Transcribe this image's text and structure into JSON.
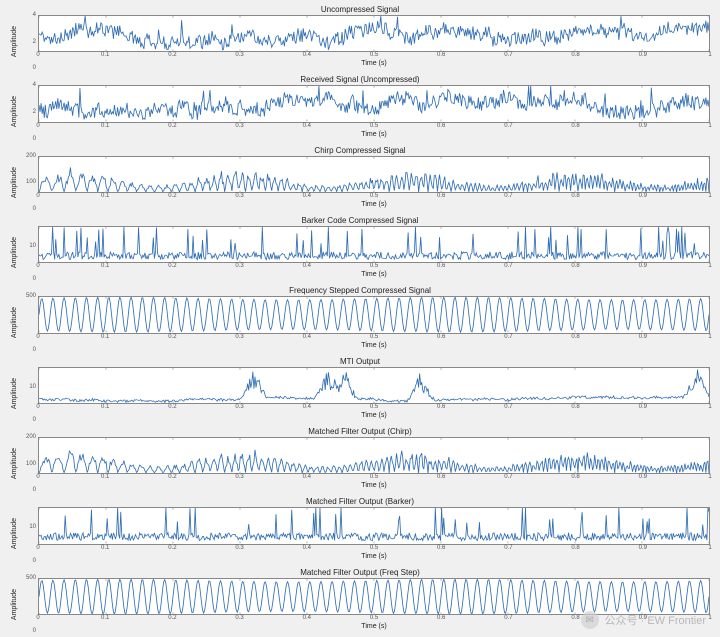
{
  "background_color": "#f0f0f0",
  "plot_background": "#ffffff",
  "axis_border_color": "#888888",
  "line_color": "#2f6db4",
  "text_color": "#222222",
  "tick_color": "#555555",
  "title_fontsize": 8,
  "label_fontsize": 7,
  "tick_fontsize": 6,
  "line_width": 0.8,
  "xlim": [
    0,
    1
  ],
  "xticks": [
    0,
    0.1,
    0.2,
    0.3,
    0.4,
    0.5,
    0.6,
    0.7,
    0.8,
    0.9,
    1
  ],
  "xlabel": "Time (s)",
  "ylabel": "Amplitude",
  "n_samples": 640,
  "panels": [
    {
      "title": "Uncompressed Signal",
      "ylim": [
        0,
        4
      ],
      "yticks": [
        0,
        2,
        4
      ],
      "waveform": "noise",
      "seed": 11,
      "base": 1.8,
      "spread": 1.6
    },
    {
      "title": "Received Signal (Uncompressed)",
      "ylim": [
        0,
        4
      ],
      "yticks": [
        0,
        2,
        4
      ],
      "waveform": "noise",
      "seed": 23,
      "base": 1.8,
      "spread": 1.6
    },
    {
      "title": "Chirp Compressed Signal",
      "ylim": [
        0,
        200
      ],
      "yticks": [
        0,
        100,
        200
      ],
      "waveform": "chirp",
      "seed": 35,
      "osc": 50,
      "mod": 0.7,
      "env_amp": 95,
      "env_base": 40
    },
    {
      "title": "Barker Code Compressed Signal",
      "ylim": [
        0,
        16
      ],
      "yticks": [
        0,
        10
      ],
      "waveform": "spiky",
      "seed": 47,
      "base": 3.0,
      "spike_h": 12,
      "spike_prob": 0.06
    },
    {
      "title": "Frequency Stepped Compressed Signal",
      "ylim": [
        0,
        500
      ],
      "yticks": [
        0,
        500
      ],
      "waveform": "carrier",
      "seed": 59,
      "osc": 60,
      "amp": 230,
      "mid": 250,
      "mod_depth": 0.08
    },
    {
      "title": "MTI Output",
      "ylim": [
        0,
        16
      ],
      "yticks": [
        0,
        10
      ],
      "waveform": "mti",
      "seed": 67,
      "base": 2.0,
      "bursts": 5,
      "burst_h": 9
    },
    {
      "title": "Matched Filter Output (Chirp)",
      "ylim": [
        0,
        200
      ],
      "yticks": [
        0,
        100,
        200
      ],
      "waveform": "chirp",
      "seed": 73,
      "osc": 50,
      "mod": 0.7,
      "env_amp": 95,
      "env_base": 40
    },
    {
      "title": "Matched Filter Output (Barker)",
      "ylim": [
        0,
        16
      ],
      "yticks": [
        0,
        10
      ],
      "waveform": "spiky",
      "seed": 83,
      "base": 3.0,
      "spike_h": 12,
      "spike_prob": 0.06
    },
    {
      "title": "Matched Filter Output (Freq Step)",
      "ylim": [
        0,
        500
      ],
      "yticks": [
        0,
        500
      ],
      "waveform": "carrier",
      "seed": 97,
      "osc": 60,
      "amp": 230,
      "mid": 250,
      "mod_depth": 0.08
    }
  ],
  "watermark": {
    "icon_glyph": "✉",
    "text": "公众号 · EW Frontier",
    "text_color": "#9a9a9a"
  }
}
